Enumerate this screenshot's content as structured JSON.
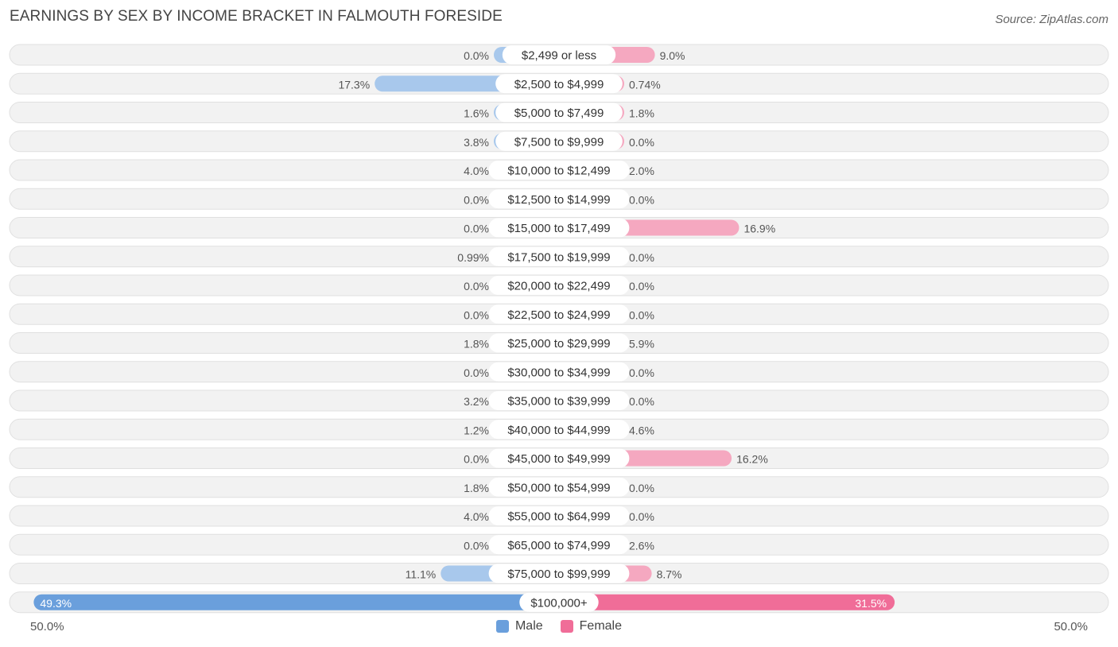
{
  "header": {
    "title": "EARNINGS BY SEX BY INCOME BRACKET IN FALMOUTH FORESIDE",
    "source": "Source: ZipAtlas.com"
  },
  "axis": {
    "left_label": "50.0%",
    "right_label": "50.0%"
  },
  "legend": {
    "male_label": "Male",
    "female_label": "Female"
  },
  "colors": {
    "male": "#a8c8ec",
    "male_strong": "#6a9fdc",
    "female": "#f5a8c0",
    "female_strong": "#f06d98",
    "row_bg": "#f2f2f2",
    "row_border": "#e0e0e0"
  },
  "chart_data": {
    "type": "bar",
    "orientation": "horizontal-diverging",
    "title": "EARNINGS BY SEX BY INCOME BRACKET IN FALMOUTH FORESIDE",
    "xlim": [
      -50,
      50
    ],
    "categories": [
      "$2,499 or less",
      "$2,500 to $4,999",
      "$5,000 to $7,499",
      "$7,500 to $9,999",
      "$10,000 to $12,499",
      "$12,500 to $14,999",
      "$15,000 to $17,499",
      "$17,500 to $19,999",
      "$20,000 to $22,499",
      "$22,500 to $24,999",
      "$25,000 to $29,999",
      "$30,000 to $34,999",
      "$35,000 to $39,999",
      "$40,000 to $44,999",
      "$45,000 to $49,999",
      "$50,000 to $54,999",
      "$55,000 to $64,999",
      "$65,000 to $74,999",
      "$75,000 to $99,999",
      "$100,000+"
    ],
    "series": [
      {
        "name": "Male",
        "values": [
          0.0,
          17.3,
          1.6,
          3.8,
          4.0,
          0.0,
          0.0,
          0.99,
          0.0,
          0.0,
          1.8,
          0.0,
          3.2,
          1.2,
          0.0,
          1.8,
          4.0,
          0.0,
          11.1,
          49.3
        ],
        "labels": [
          "0.0%",
          "17.3%",
          "1.6%",
          "3.8%",
          "4.0%",
          "0.0%",
          "0.0%",
          "0.99%",
          "0.0%",
          "0.0%",
          "1.8%",
          "0.0%",
          "3.2%",
          "1.2%",
          "0.0%",
          "1.8%",
          "4.0%",
          "0.0%",
          "11.1%",
          "49.3%"
        ]
      },
      {
        "name": "Female",
        "values": [
          9.0,
          0.74,
          1.8,
          0.0,
          2.0,
          0.0,
          16.9,
          0.0,
          0.0,
          0.0,
          5.9,
          0.0,
          0.0,
          4.6,
          16.2,
          0.0,
          0.0,
          2.6,
          8.7,
          31.5
        ],
        "labels": [
          "9.0%",
          "0.74%",
          "1.8%",
          "0.0%",
          "2.0%",
          "0.0%",
          "16.9%",
          "0.0%",
          "0.0%",
          "0.0%",
          "5.9%",
          "0.0%",
          "0.0%",
          "4.6%",
          "16.2%",
          "0.0%",
          "0.0%",
          "2.6%",
          "8.7%",
          "31.5%"
        ]
      }
    ]
  }
}
